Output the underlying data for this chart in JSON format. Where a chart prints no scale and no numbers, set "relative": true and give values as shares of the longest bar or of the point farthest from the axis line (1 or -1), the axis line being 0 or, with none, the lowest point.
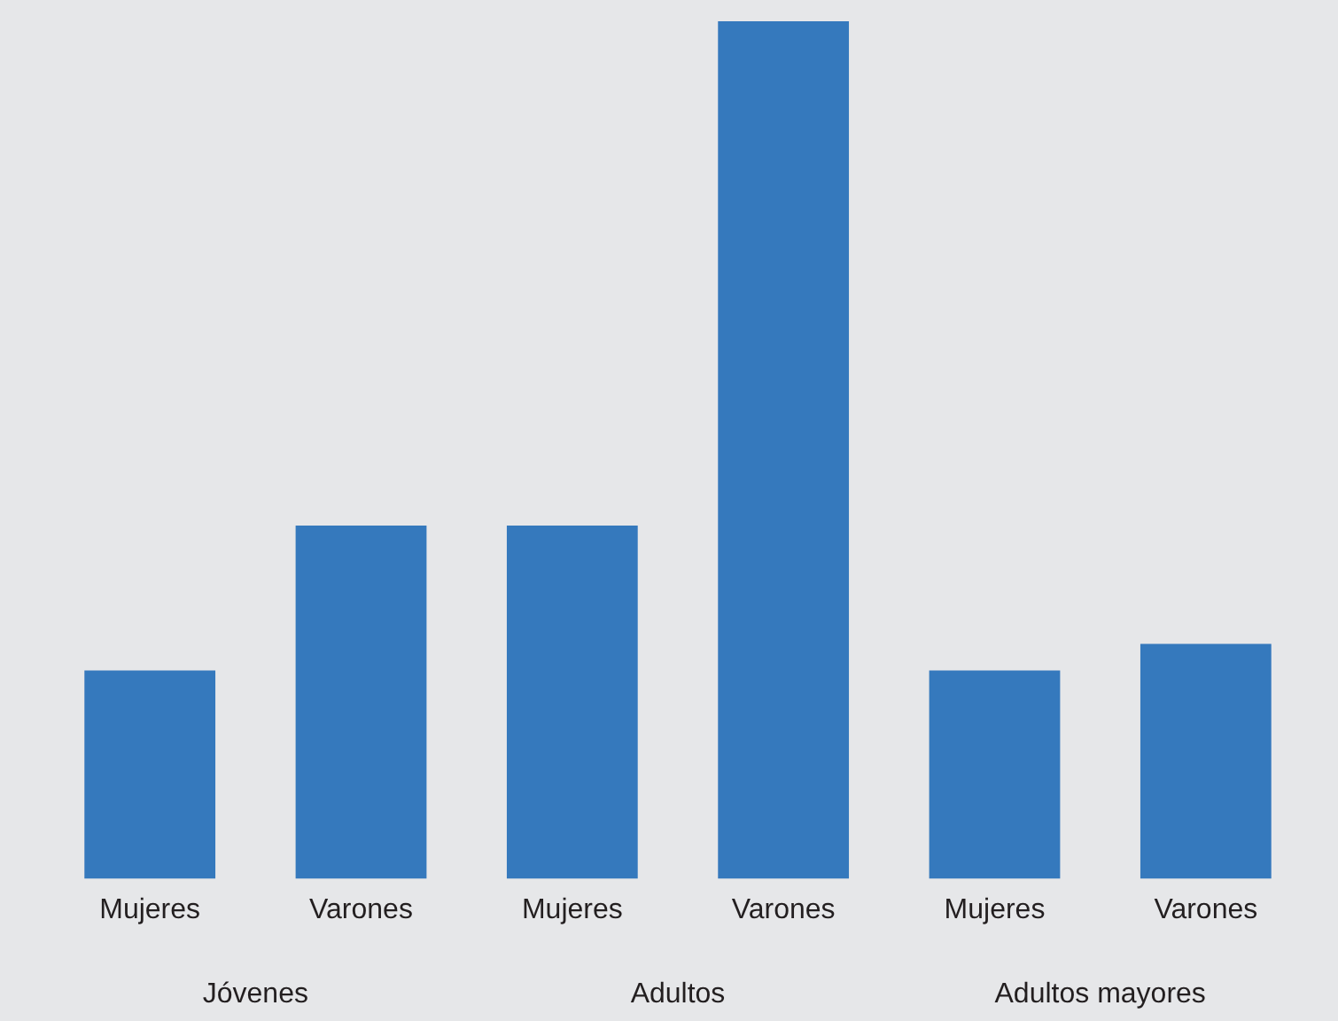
{
  "chart_data": {
    "type": "bar",
    "relative": true,
    "categories": [
      "Mujeres",
      "Varones",
      "Mujeres",
      "Varones",
      "Mujeres",
      "Varones"
    ],
    "values": [
      0.243,
      0.412,
      0.412,
      1,
      0.243,
      0.274
    ],
    "color": "#3579bd",
    "annotations": [
      "Jóvenes",
      "Adultos",
      "Adultos mayores"
    ],
    "grid": false,
    "legend": false
  }
}
